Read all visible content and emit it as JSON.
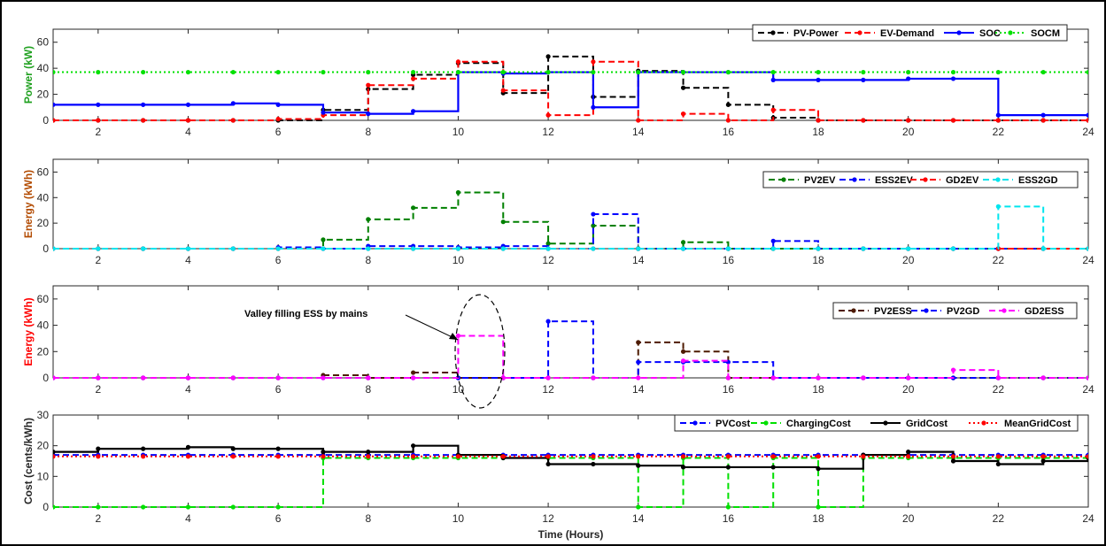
{
  "colors": {
    "background": "#ffffff",
    "axis": "#262626",
    "grid": "#e6e6e6"
  },
  "chart_data": [
    {
      "type": "line",
      "ylabel": "Power (kW)",
      "ylabel_color": "#1fa01f",
      "xlabel": "",
      "xlim": [
        1,
        24
      ],
      "ylim": [
        0,
        70
      ],
      "yticks": [
        0,
        20,
        40,
        60
      ],
      "xticks": [
        2,
        4,
        6,
        8,
        10,
        12,
        14,
        16,
        18,
        20,
        22,
        24
      ],
      "legend_position": "top-right",
      "series": [
        {
          "name": "PV-Power",
          "color": "#000000",
          "style": "dashed",
          "marker": "dot",
          "x": [
            1,
            2,
            3,
            4,
            5,
            6,
            7,
            8,
            9,
            10,
            11,
            12,
            13,
            14,
            15,
            16,
            17,
            18,
            19,
            20,
            21,
            22,
            23,
            24
          ],
          "values": [
            0,
            0,
            0,
            0,
            0,
            0,
            8,
            24,
            35,
            44,
            21,
            49,
            18,
            38,
            25,
            12,
            2,
            0,
            0,
            0,
            0,
            0,
            0,
            0
          ]
        },
        {
          "name": "EV-Demand",
          "color": "#ff0000",
          "style": "dashed",
          "marker": "triangle",
          "x": [
            1,
            2,
            3,
            4,
            5,
            6,
            7,
            8,
            9,
            10,
            11,
            12,
            13,
            14,
            15,
            16,
            17,
            18,
            19,
            20,
            21,
            22,
            23,
            24
          ],
          "values": [
            0,
            0,
            0,
            0,
            0,
            1,
            4,
            27,
            32,
            45,
            23,
            4,
            45,
            0,
            5,
            0,
            8,
            0,
            0,
            0,
            0,
            0,
            0,
            0
          ]
        },
        {
          "name": "SOC",
          "color": "#0000ff",
          "style": "solid",
          "marker": "dot",
          "x": [
            1,
            2,
            3,
            4,
            5,
            6,
            7,
            8,
            9,
            10,
            11,
            12,
            13,
            14,
            15,
            16,
            17,
            18,
            19,
            20,
            21,
            22,
            23,
            24
          ],
          "values": [
            12,
            12,
            12,
            12,
            13,
            12,
            6,
            5,
            7,
            37,
            36,
            37,
            10,
            37,
            37,
            37,
            31,
            31,
            31,
            32,
            32,
            4,
            4,
            4
          ]
        },
        {
          "name": "SOCM",
          "color": "#00e000",
          "style": "dotted",
          "marker": "triangle",
          "x": [
            1,
            2,
            3,
            4,
            5,
            6,
            7,
            8,
            9,
            10,
            11,
            12,
            13,
            14,
            15,
            16,
            17,
            18,
            19,
            20,
            21,
            22,
            23,
            24
          ],
          "values": [
            37,
            37,
            37,
            37,
            37,
            37,
            37,
            37,
            37,
            37,
            37,
            37,
            37,
            37,
            37,
            37,
            37,
            37,
            37,
            37,
            37,
            37,
            37,
            37
          ]
        }
      ]
    },
    {
      "type": "line",
      "ylabel": "Energy (kWh)",
      "ylabel_color": "#b24a00",
      "xlabel": "",
      "xlim": [
        1,
        24
      ],
      "ylim": [
        0,
        70
      ],
      "yticks": [
        0,
        20,
        40,
        60
      ],
      "xticks": [
        2,
        4,
        6,
        8,
        10,
        12,
        14,
        16,
        18,
        20,
        22,
        24
      ],
      "legend_position": "top-right",
      "series": [
        {
          "name": "PV2EV",
          "color": "#008000",
          "style": "dashed",
          "marker": "triangle",
          "x": [
            1,
            2,
            3,
            4,
            5,
            6,
            7,
            8,
            9,
            10,
            11,
            12,
            13,
            14,
            15,
            16,
            17,
            18,
            19,
            20,
            21,
            22,
            23,
            24
          ],
          "values": [
            0,
            0,
            0,
            0,
            0,
            0,
            7,
            23,
            32,
            44,
            21,
            4,
            18,
            0,
            5,
            0,
            0,
            0,
            0,
            0,
            0,
            0,
            0,
            0
          ]
        },
        {
          "name": "ESS2EV",
          "color": "#0000ff",
          "style": "dashed",
          "marker": "plus",
          "x": [
            1,
            2,
            3,
            4,
            5,
            6,
            7,
            8,
            9,
            10,
            11,
            12,
            13,
            14,
            15,
            16,
            17,
            18,
            19,
            20,
            21,
            22,
            23,
            24
          ],
          "values": [
            0,
            0,
            0,
            0,
            0,
            1,
            0,
            2,
            2,
            1,
            2,
            0,
            27,
            0,
            0,
            0,
            6,
            0,
            0,
            0,
            0,
            0,
            0,
            0
          ]
        },
        {
          "name": "GD2EV",
          "color": "#ff0000",
          "style": "dashed",
          "marker": "triangle-down",
          "x": [
            1,
            2,
            3,
            4,
            5,
            6,
            7,
            8,
            9,
            10,
            11,
            12,
            13,
            14,
            15,
            16,
            17,
            18,
            19,
            20,
            21,
            22,
            23,
            24
          ],
          "values": [
            0,
            0,
            0,
            0,
            0,
            0,
            0,
            0,
            0,
            0,
            0,
            0,
            0,
            0,
            0,
            0,
            0,
            0,
            0,
            0,
            0,
            0,
            0,
            0
          ]
        },
        {
          "name": "ESS2GD",
          "color": "#00e5ee",
          "style": "dashed",
          "marker": "circle",
          "x": [
            1,
            2,
            3,
            4,
            5,
            6,
            7,
            8,
            9,
            10,
            11,
            12,
            13,
            14,
            15,
            16,
            17,
            18,
            19,
            20,
            21,
            22,
            23,
            24
          ],
          "values": [
            0,
            0,
            0,
            0,
            0,
            0,
            0,
            0,
            0,
            0,
            0,
            0,
            0,
            0,
            0,
            0,
            0,
            0,
            0,
            0,
            0,
            33,
            0,
            0
          ]
        }
      ]
    },
    {
      "type": "line",
      "ylabel": "Energy (kWh)",
      "ylabel_color": "#ff0000",
      "xlabel": "",
      "xlim": [
        1,
        24
      ],
      "ylim": [
        0,
        70
      ],
      "yticks": [
        0,
        20,
        40,
        60
      ],
      "xticks": [
        2,
        4,
        6,
        8,
        10,
        12,
        14,
        16,
        18,
        20,
        22,
        24
      ],
      "legend_position": "top-right",
      "annotation": "Valley filling ESS by mains",
      "series": [
        {
          "name": "PV2ESS",
          "color": "#4d1a00",
          "style": "dashed",
          "marker": "triangle",
          "x": [
            1,
            2,
            3,
            4,
            5,
            6,
            7,
            8,
            9,
            10,
            11,
            12,
            13,
            14,
            15,
            16,
            17,
            18,
            19,
            20,
            21,
            22,
            23,
            24
          ],
          "values": [
            0,
            0,
            0,
            0,
            0,
            0,
            2,
            0,
            4,
            0,
            0,
            0,
            0,
            27,
            20,
            0,
            0,
            0,
            0,
            0,
            0,
            0,
            0,
            0
          ]
        },
        {
          "name": "PV2GD",
          "color": "#0000ff",
          "style": "dashed",
          "marker": "plus",
          "x": [
            1,
            2,
            3,
            4,
            5,
            6,
            7,
            8,
            9,
            10,
            11,
            12,
            13,
            14,
            15,
            16,
            17,
            18,
            19,
            20,
            21,
            22,
            23,
            24
          ],
          "values": [
            0,
            0,
            0,
            0,
            0,
            0,
            0,
            0,
            0,
            0,
            0,
            43,
            0,
            12,
            12,
            12,
            0,
            0,
            0,
            0,
            0,
            0,
            0,
            0
          ]
        },
        {
          "name": "GD2ESS",
          "color": "#ff00ff",
          "style": "dashed",
          "marker": "dot",
          "x": [
            1,
            2,
            3,
            4,
            5,
            6,
            7,
            8,
            9,
            10,
            11,
            12,
            13,
            14,
            15,
            16,
            17,
            18,
            19,
            20,
            21,
            22,
            23,
            24
          ],
          "values": [
            0,
            0,
            0,
            0,
            0,
            0,
            0,
            0,
            0,
            32,
            0,
            0,
            0,
            0,
            13,
            0,
            0,
            0,
            0,
            0,
            6,
            0,
            0,
            0
          ]
        }
      ]
    },
    {
      "type": "line",
      "ylabel": "Cost (cents/kWh)",
      "ylabel_color": "#262626",
      "xlabel": "Time (Hours)",
      "xlim": [
        1,
        24
      ],
      "ylim": [
        0,
        30
      ],
      "yticks": [
        0,
        10,
        20,
        30
      ],
      "xticks": [
        2,
        4,
        6,
        8,
        10,
        12,
        14,
        16,
        18,
        20,
        22,
        24
      ],
      "legend_position": "top-right",
      "series": [
        {
          "name": "PVCost",
          "color": "#0000ff",
          "style": "dashed",
          "marker": "plus",
          "x": [
            1,
            2,
            3,
            4,
            5,
            6,
            7,
            8,
            9,
            10,
            11,
            12,
            13,
            14,
            15,
            16,
            17,
            18,
            19,
            20,
            21,
            22,
            23,
            24
          ],
          "values": [
            17,
            17,
            17,
            17,
            17,
            17,
            17,
            17,
            17,
            17,
            17,
            17,
            17,
            17,
            17,
            17,
            17,
            17,
            17,
            17,
            17,
            17,
            17,
            17
          ]
        },
        {
          "name": "ChargingCost",
          "color": "#00e000",
          "style": "dashed",
          "marker": "triangle",
          "x": [
            1,
            2,
            3,
            4,
            5,
            6,
            7,
            8,
            9,
            10,
            11,
            12,
            13,
            14,
            15,
            16,
            17,
            18,
            19,
            20,
            21,
            22,
            23,
            24
          ],
          "values": [
            0,
            0,
            0,
            0,
            0,
            0,
            16,
            16,
            16,
            16,
            16,
            16,
            16,
            0,
            16,
            0,
            16,
            0,
            16,
            16,
            16,
            16,
            16,
            16
          ]
        },
        {
          "name": "GridCost",
          "color": "#000000",
          "style": "solid",
          "marker": "dot",
          "x": [
            1,
            2,
            3,
            4,
            5,
            6,
            7,
            8,
            9,
            10,
            11,
            12,
            13,
            14,
            15,
            16,
            17,
            18,
            19,
            20,
            21,
            22,
            23,
            24
          ],
          "values": [
            18,
            19,
            19,
            19.5,
            19,
            19,
            18,
            18,
            20,
            17,
            16,
            14,
            14,
            13.5,
            13,
            13,
            13,
            12.5,
            17,
            18,
            15,
            14,
            15,
            16
          ]
        },
        {
          "name": "MeanGridCost",
          "color": "#ff0000",
          "style": "dotted",
          "marker": "triangle",
          "x": [
            1,
            2,
            3,
            4,
            5,
            6,
            7,
            8,
            9,
            10,
            11,
            12,
            13,
            14,
            15,
            16,
            17,
            18,
            19,
            20,
            21,
            22,
            23,
            24
          ],
          "values": [
            16.5,
            16.5,
            16.5,
            16.5,
            16.5,
            16.5,
            16.5,
            16.5,
            16.5,
            16.5,
            16.5,
            16.5,
            16.5,
            16.5,
            16.5,
            16.5,
            16.5,
            16.5,
            16.5,
            16.5,
            16.5,
            16.5,
            16.5,
            16.5
          ]
        }
      ]
    }
  ]
}
